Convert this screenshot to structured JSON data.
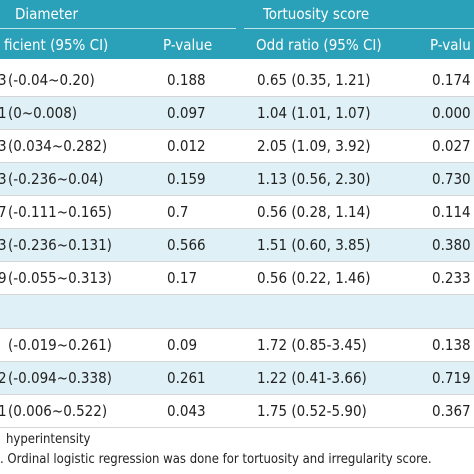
{
  "header": {
    "group_diameter": "Diameter",
    "group_tortuosity": "Tortuosity score",
    "col_coefficient": "ficient (95% CI)",
    "col_pvalue_1": "P-value",
    "col_odd_ratio": "Odd ratio (95% CI)",
    "col_pvalue_2": "P-valu"
  },
  "rows": [
    {
      "mark": "3",
      "coef": "(-0.04~0.20)",
      "p1": "0.188",
      "odds": "0.65 (0.35, 1.21)",
      "p2": "0.174"
    },
    {
      "mark": "1",
      "coef": "(0~0.008)",
      "p1": "0.097",
      "odds": "1.04 (1.01, 1.07)",
      "p2": "0.000"
    },
    {
      "mark": "3",
      "coef": "(0.034~0.282)",
      "p1": "0.012",
      "odds": "2.05 (1.09, 3.92)",
      "p2": "0.027"
    },
    {
      "mark": "3",
      "coef": "(-0.236~0.04)",
      "p1": "0.159",
      "odds": "1.13 (0.56, 2.30)",
      "p2": "0.730"
    },
    {
      "mark": "7",
      "coef": "(-0.111~0.165)",
      "p1": "0.7",
      "odds": "0.56 (0.28, 1.14)",
      "p2": "0.114"
    },
    {
      "mark": "3",
      "coef": "(-0.236~0.131)",
      "p1": "0.566",
      "odds": "1.51 (0.60, 3.85)",
      "p2": "0.380"
    },
    {
      "mark": "9",
      "coef": "(-0.055~0.313)",
      "p1": "0.17",
      "odds": "0.56 (0.22, 1.46)",
      "p2": "0.233"
    }
  ],
  "rows_b": [
    {
      "mark": "",
      "coef": "(-0.019~0.261)",
      "p1": "0.09",
      "odds": "1.72 (0.85-3.45)",
      "p2": "0.138"
    },
    {
      "mark": "2",
      "coef": "(-0.094~0.338)",
      "p1": "0.261",
      "odds": "1.22 (0.41-3.66)",
      "p2": "0.719"
    },
    {
      "mark": "1",
      "coef": "(0.006~0.522)",
      "p1": "0.043",
      "odds": "1.75 (0.52-5.90)",
      "p2": "0.367"
    }
  ],
  "footnotes": {
    "line1": "hyperintensity",
    "line2": ". Ordinal logistic regression was done for tortuosity and irregularity score."
  },
  "colors": {
    "header_bg": "#2aa1b8",
    "row_shade": "#dff1f6"
  }
}
